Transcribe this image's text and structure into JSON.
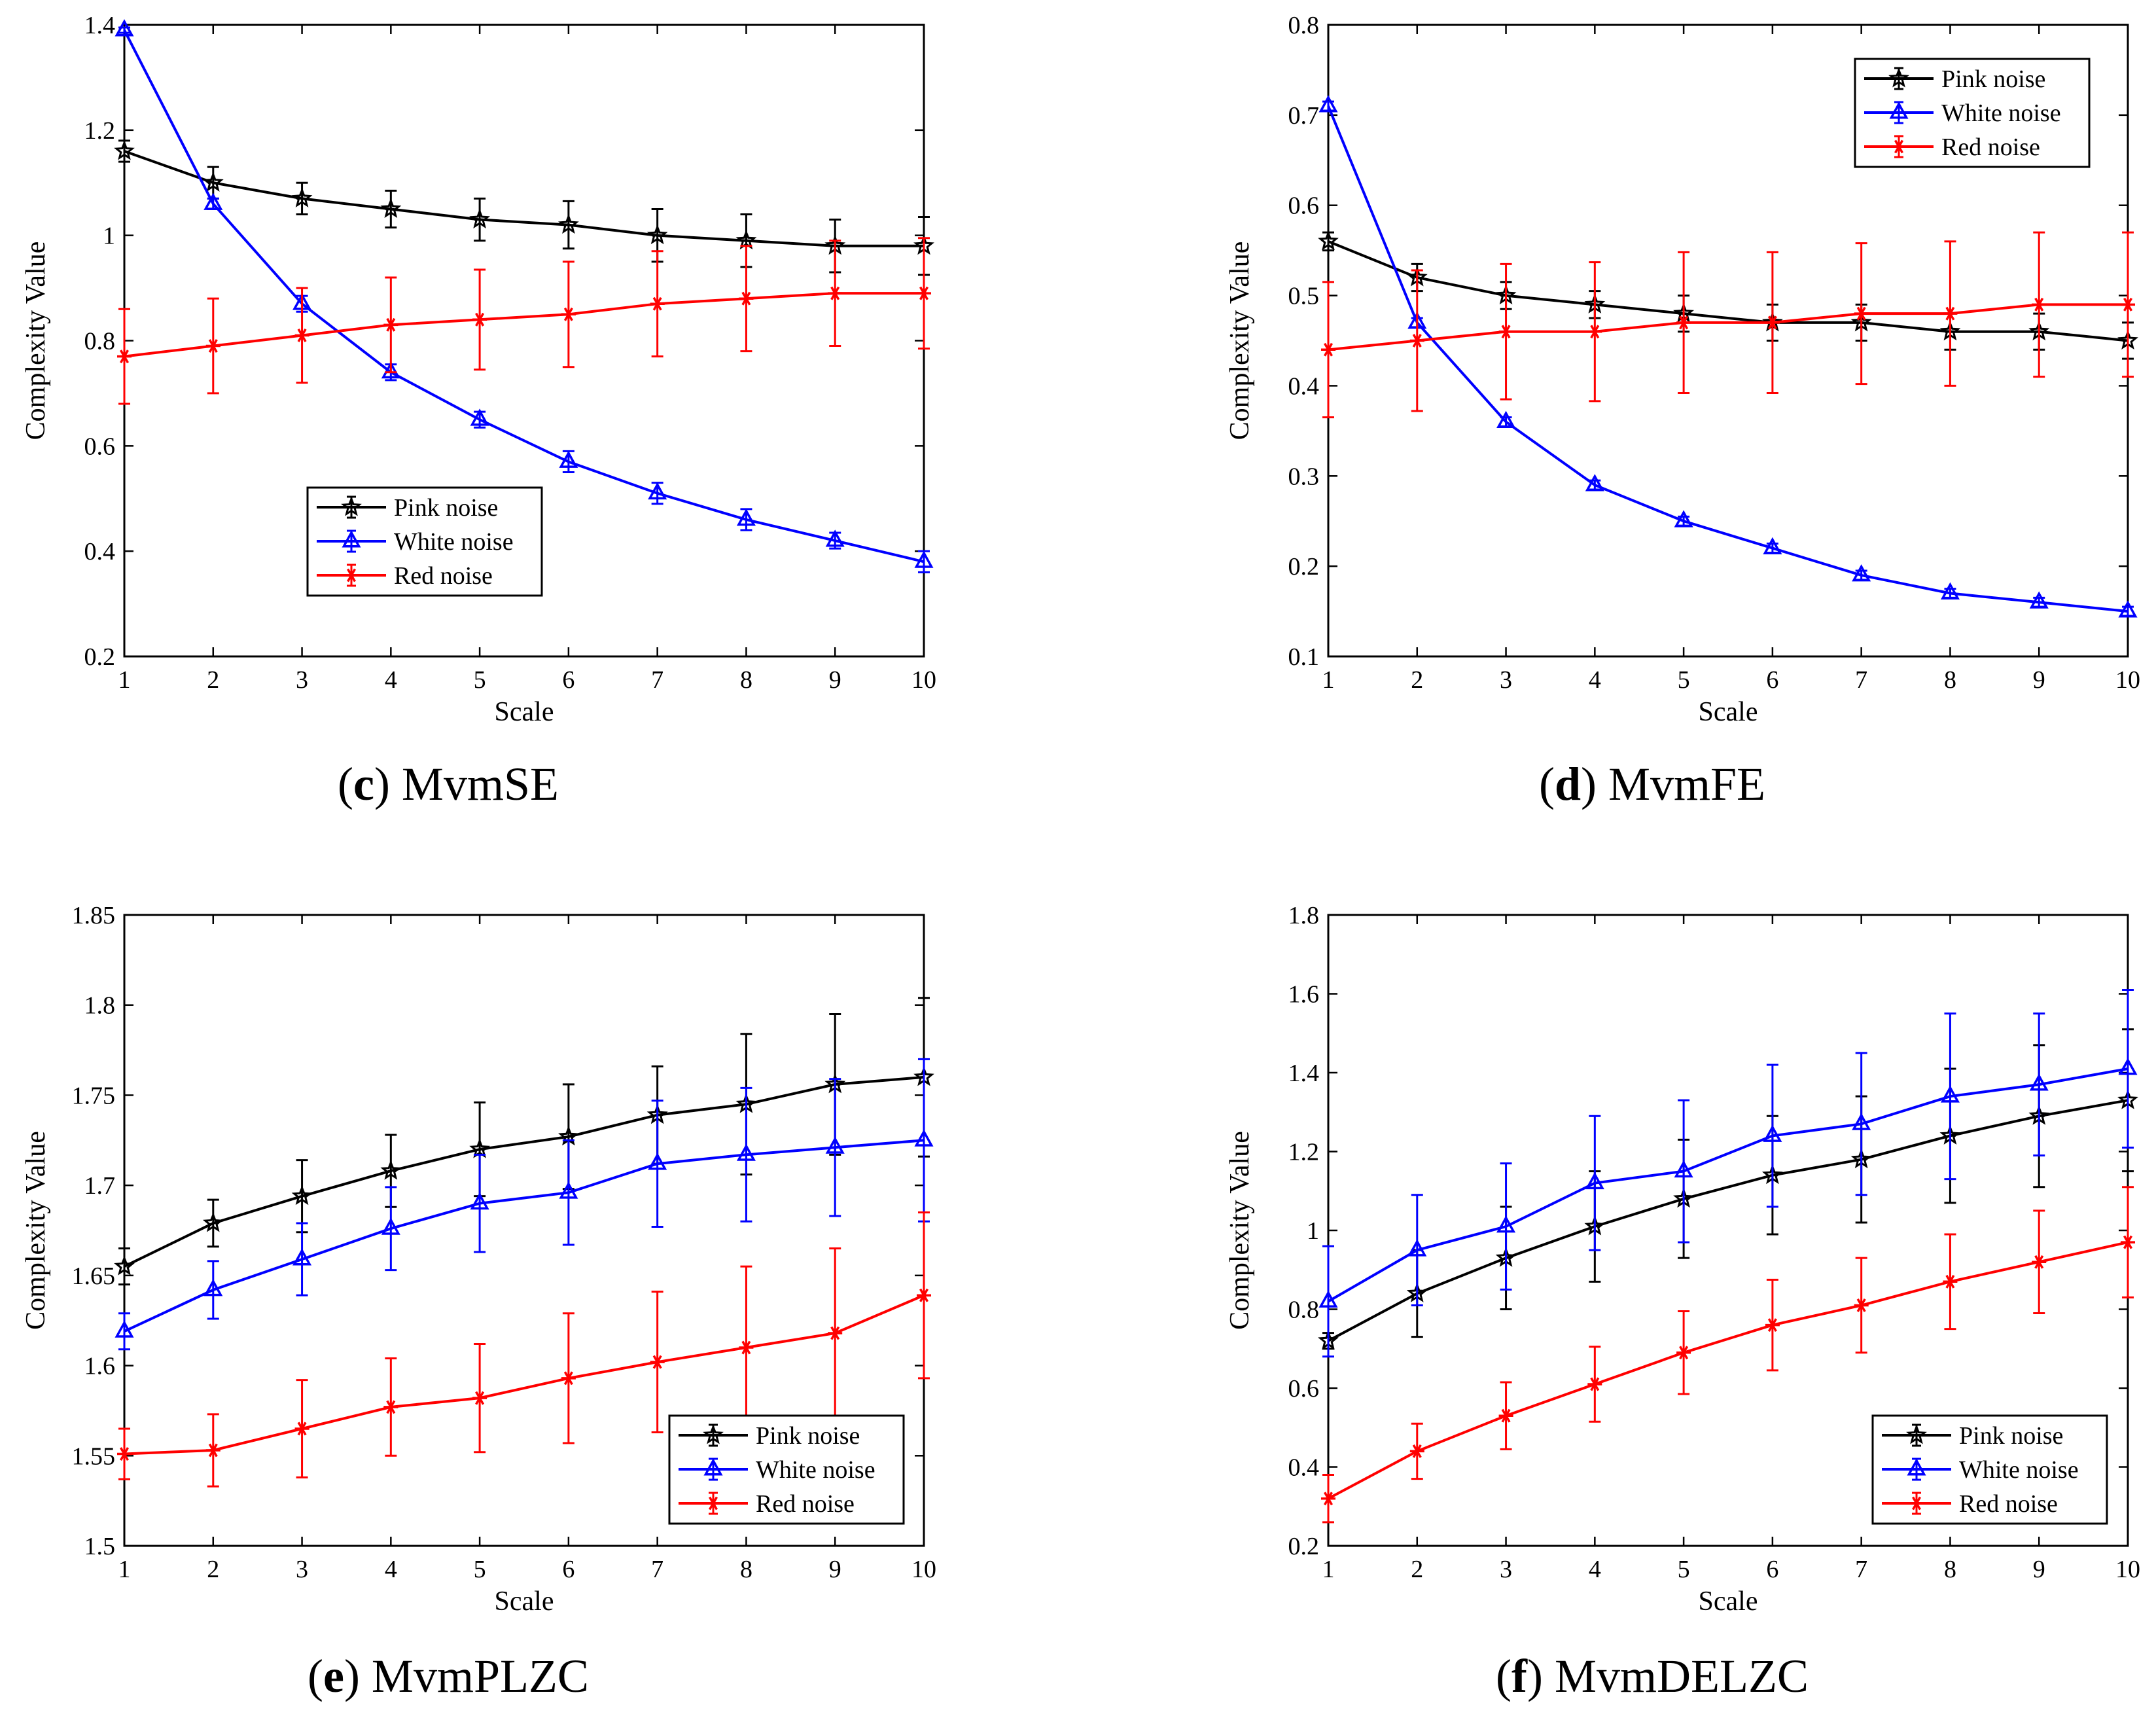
{
  "figure": {
    "panels": [
      {
        "letter": "c",
        "name": "MvmSE"
      },
      {
        "letter": "d",
        "name": "MvmFE"
      },
      {
        "letter": "e",
        "name": "MvmPLZC"
      },
      {
        "letter": "f",
        "name": "MvmDELZC"
      }
    ]
  },
  "colors": {
    "pink": "#000000",
    "white": "#0000ff",
    "red": "#ff0000",
    "axis": "#000000",
    "background": "#ffffff"
  },
  "chart_data": [
    {
      "type": "line",
      "panel_label": "(c) MvmSE",
      "xlabel": "Scale",
      "ylabel": "Complexity Value",
      "x": [
        1,
        2,
        3,
        4,
        5,
        6,
        7,
        8,
        9,
        10
      ],
      "xlim": [
        1,
        10
      ],
      "ylim": [
        0.2,
        1.4
      ],
      "yticks": [
        0.2,
        0.4,
        0.6,
        0.8,
        1,
        1.2,
        1.4
      ],
      "ytick_labels": [
        "0.2",
        "0.4",
        "0.6",
        "0.8",
        "1",
        "1.2",
        "1.4"
      ],
      "legend_position": "lower-middle",
      "grid": false,
      "series": [
        {
          "name": "Pink noise",
          "marker": "star",
          "color": "#000000",
          "values": [
            1.16,
            1.1,
            1.07,
            1.05,
            1.03,
            1.02,
            1.0,
            0.99,
            0.98,
            0.98
          ],
          "errors": [
            0.02,
            0.03,
            0.03,
            0.035,
            0.04,
            0.045,
            0.05,
            0.05,
            0.05,
            0.055
          ]
        },
        {
          "name": "White noise",
          "marker": "triangle",
          "color": "#0000ff",
          "values": [
            1.39,
            1.06,
            0.87,
            0.74,
            0.65,
            0.57,
            0.51,
            0.46,
            0.42,
            0.38
          ],
          "errors": [
            0.005,
            0.01,
            0.015,
            0.015,
            0.015,
            0.02,
            0.02,
            0.02,
            0.015,
            0.02
          ]
        },
        {
          "name": "Red noise",
          "marker": "asterisk",
          "color": "#ff0000",
          "values": [
            0.77,
            0.79,
            0.81,
            0.83,
            0.84,
            0.85,
            0.87,
            0.88,
            0.89,
            0.89
          ],
          "errors": [
            0.09,
            0.09,
            0.09,
            0.09,
            0.095,
            0.1,
            0.1,
            0.1,
            0.1,
            0.105
          ]
        }
      ]
    },
    {
      "type": "line",
      "panel_label": "(d) MvmFE",
      "xlabel": "Scale",
      "ylabel": "Complexity Value",
      "x": [
        1,
        2,
        3,
        4,
        5,
        6,
        7,
        8,
        9,
        10
      ],
      "xlim": [
        1,
        10
      ],
      "ylim": [
        0.1,
        0.8
      ],
      "yticks": [
        0.1,
        0.2,
        0.3,
        0.4,
        0.5,
        0.6,
        0.7,
        0.8
      ],
      "ytick_labels": [
        "0.1",
        "0.2",
        "0.3",
        "0.4",
        "0.5",
        "0.6",
        "0.7",
        "0.8"
      ],
      "legend_position": "top-right",
      "grid": false,
      "series": [
        {
          "name": "Pink noise",
          "marker": "star",
          "color": "#000000",
          "values": [
            0.56,
            0.52,
            0.5,
            0.49,
            0.48,
            0.47,
            0.47,
            0.46,
            0.46,
            0.45
          ],
          "errors": [
            0.01,
            0.015,
            0.015,
            0.015,
            0.02,
            0.02,
            0.02,
            0.02,
            0.02,
            0.02
          ]
        },
        {
          "name": "White noise",
          "marker": "triangle",
          "color": "#0000ff",
          "values": [
            0.71,
            0.47,
            0.36,
            0.29,
            0.25,
            0.22,
            0.19,
            0.17,
            0.16,
            0.15
          ],
          "errors": [
            0.005,
            0.005,
            0.005,
            0.005,
            0.005,
            0.005,
            0.005,
            0.005,
            0.005,
            0.005
          ]
        },
        {
          "name": "Red noise",
          "marker": "asterisk",
          "color": "#ff0000",
          "values": [
            0.44,
            0.45,
            0.46,
            0.46,
            0.47,
            0.47,
            0.48,
            0.48,
            0.49,
            0.49
          ],
          "errors": [
            0.075,
            0.078,
            0.075,
            0.077,
            0.078,
            0.078,
            0.078,
            0.08,
            0.08,
            0.08
          ]
        }
      ]
    },
    {
      "type": "line",
      "panel_label": "(e) MvmPLZC",
      "xlabel": "Scale",
      "ylabel": "Complexity Value",
      "x": [
        1,
        2,
        3,
        4,
        5,
        6,
        7,
        8,
        9,
        10
      ],
      "xlim": [
        1,
        10
      ],
      "ylim": [
        1.5,
        1.85
      ],
      "yticks": [
        1.5,
        1.55,
        1.6,
        1.65,
        1.7,
        1.75,
        1.8,
        1.85
      ],
      "ytick_labels": [
        "1.5",
        "1.55",
        "1.6",
        "1.65",
        "1.7",
        "1.75",
        "1.8",
        "1.85"
      ],
      "legend_position": "bottom-right",
      "grid": false,
      "series": [
        {
          "name": "Pink noise",
          "marker": "star",
          "color": "#000000",
          "values": [
            1.655,
            1.679,
            1.694,
            1.708,
            1.72,
            1.727,
            1.739,
            1.745,
            1.756,
            1.76
          ],
          "errors": [
            0.01,
            0.013,
            0.02,
            0.02,
            0.026,
            0.029,
            0.027,
            0.039,
            0.039,
            0.044
          ]
        },
        {
          "name": "White noise",
          "marker": "triangle",
          "color": "#0000ff",
          "values": [
            1.619,
            1.642,
            1.659,
            1.676,
            1.69,
            1.696,
            1.712,
            1.717,
            1.721,
            1.725
          ],
          "errors": [
            0.01,
            0.016,
            0.02,
            0.023,
            0.027,
            0.029,
            0.035,
            0.037,
            0.038,
            0.045
          ]
        },
        {
          "name": "Red noise",
          "marker": "asterisk",
          "color": "#ff0000",
          "values": [
            1.551,
            1.553,
            1.565,
            1.577,
            1.582,
            1.593,
            1.602,
            1.61,
            1.618,
            1.639
          ],
          "errors": [
            0.014,
            0.02,
            0.027,
            0.027,
            0.03,
            0.036,
            0.039,
            0.045,
            0.047,
            0.046
          ]
        }
      ]
    },
    {
      "type": "line",
      "panel_label": "(f) MvmDELZC",
      "xlabel": "Scale",
      "ylabel": "Complexity Value",
      "x": [
        1,
        2,
        3,
        4,
        5,
        6,
        7,
        8,
        9,
        10
      ],
      "xlim": [
        1,
        10
      ],
      "ylim": [
        0.2,
        1.8
      ],
      "yticks": [
        0.2,
        0.4,
        0.6,
        0.8,
        1,
        1.2,
        1.4,
        1.6,
        1.8
      ],
      "ytick_labels": [
        "0.2",
        "0.4",
        "0.6",
        "0.8",
        "1",
        "1.2",
        "1.4",
        "1.6",
        "1.8"
      ],
      "legend_position": "bottom-right",
      "grid": false,
      "series": [
        {
          "name": "Pink noise",
          "marker": "star",
          "color": "#000000",
          "values": [
            0.72,
            0.84,
            0.93,
            1.01,
            1.08,
            1.14,
            1.18,
            1.24,
            1.29,
            1.33
          ],
          "errors": [
            0.02,
            0.11,
            0.13,
            0.14,
            0.15,
            0.15,
            0.16,
            0.17,
            0.18,
            0.18
          ]
        },
        {
          "name": "White noise",
          "marker": "triangle",
          "color": "#0000ff",
          "values": [
            0.82,
            0.95,
            1.01,
            1.12,
            1.15,
            1.24,
            1.27,
            1.34,
            1.37,
            1.41
          ],
          "errors": [
            0.14,
            0.14,
            0.16,
            0.17,
            0.18,
            0.18,
            0.18,
            0.21,
            0.18,
            0.2
          ]
        },
        {
          "name": "Red noise",
          "marker": "asterisk",
          "color": "#ff0000",
          "values": [
            0.32,
            0.44,
            0.53,
            0.61,
            0.69,
            0.76,
            0.81,
            0.87,
            0.92,
            0.97
          ],
          "errors": [
            0.06,
            0.07,
            0.085,
            0.095,
            0.105,
            0.115,
            0.12,
            0.12,
            0.13,
            0.14
          ]
        }
      ]
    }
  ]
}
